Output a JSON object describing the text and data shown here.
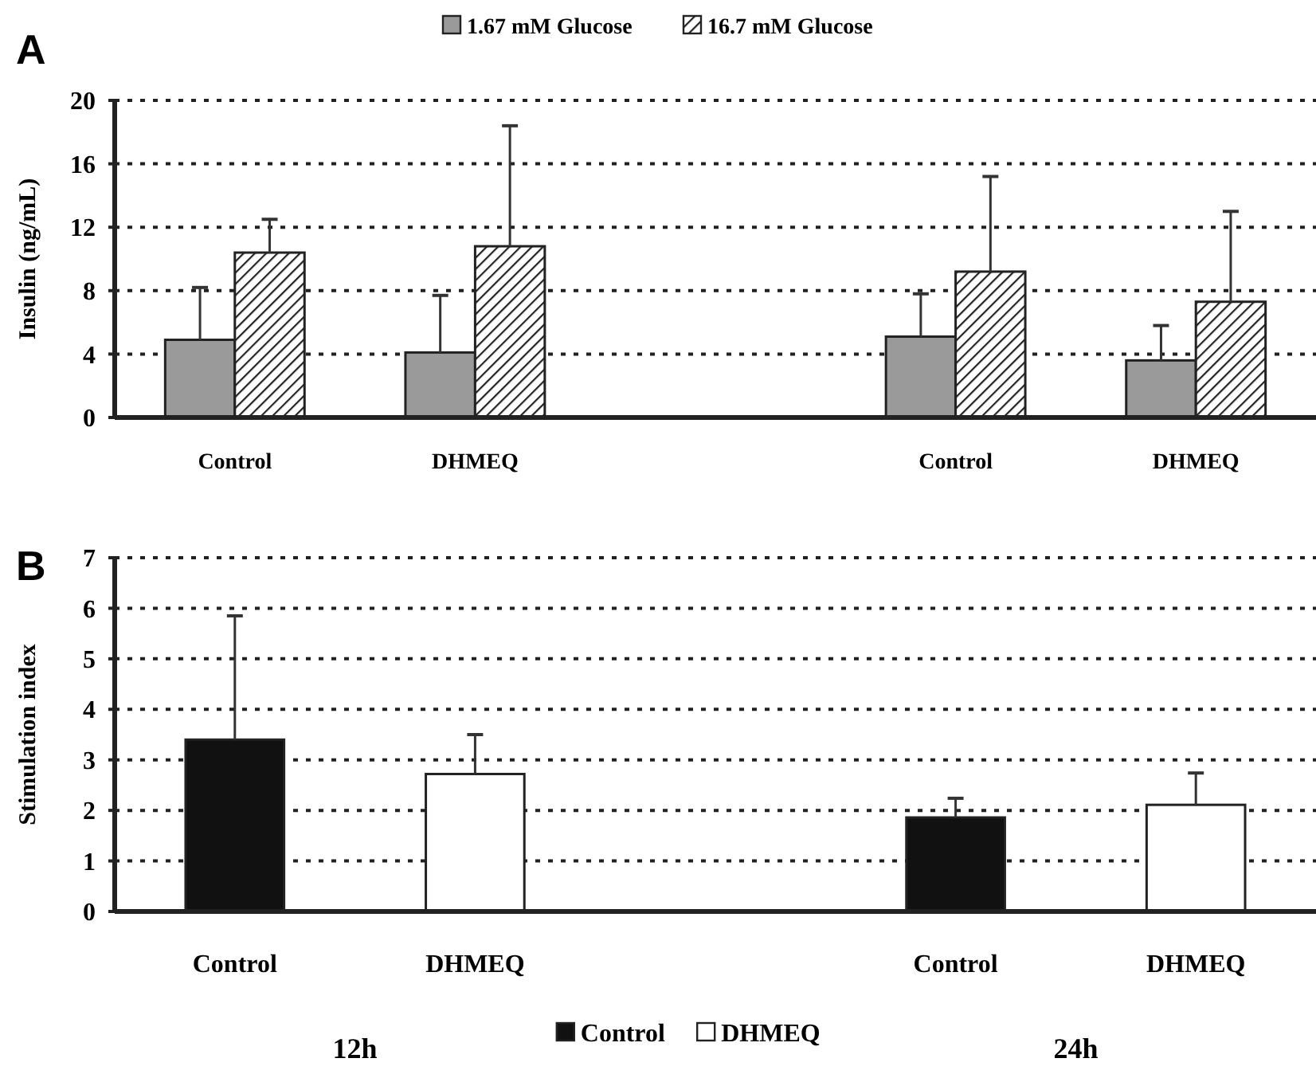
{
  "chart_data": [
    {
      "type": "bar",
      "ylabel": "Insulin (ng/mL)",
      "annotations": [
        "A"
      ],
      "categories": [
        "Control",
        "DHMEQ",
        null,
        "Control",
        "DHMEQ"
      ],
      "series": [
        {
          "name": "1.67 mM Glucose",
          "color": "#9a9a9a",
          "values": [
            4.9,
            4.1,
            null,
            5.1,
            3.6
          ],
          "errors": [
            3.3,
            3.6,
            null,
            2.7,
            2.2
          ]
        },
        {
          "name": "16.7 mM Glucose",
          "color": "#222222",
          "values": [
            10.4,
            10.8,
            null,
            9.2,
            7.3
          ],
          "errors": [
            2.1,
            7.6,
            null,
            6.0,
            5.7
          ]
        }
      ],
      "ylim": [
        0,
        20
      ],
      "yticks": [
        0,
        4,
        8,
        12,
        16,
        20
      ],
      "grid": "y",
      "legend": "top"
    },
    {
      "type": "bar",
      "ylabel": "Stimulation index",
      "annotations": [
        "B",
        "12h",
        "24h"
      ],
      "categories": [
        "Control",
        "DHMEQ",
        null,
        "Control",
        "DHMEQ"
      ],
      "series": [
        {
          "name": "Control",
          "color": "#111111",
          "values": [
            3.4,
            null,
            null,
            1.86,
            null
          ],
          "errors": [
            2.45,
            null,
            null,
            0.38,
            null
          ]
        },
        {
          "name": "DHMEQ",
          "color": "#ffffff",
          "values": [
            null,
            2.72,
            null,
            null,
            2.11
          ],
          "errors": [
            null,
            0.78,
            null,
            null,
            0.63
          ]
        }
      ],
      "ylim": [
        0,
        7
      ],
      "yticks": [
        0,
        1,
        2,
        3,
        4,
        5,
        6,
        7
      ],
      "grid": "y",
      "legend": "bottom"
    }
  ]
}
